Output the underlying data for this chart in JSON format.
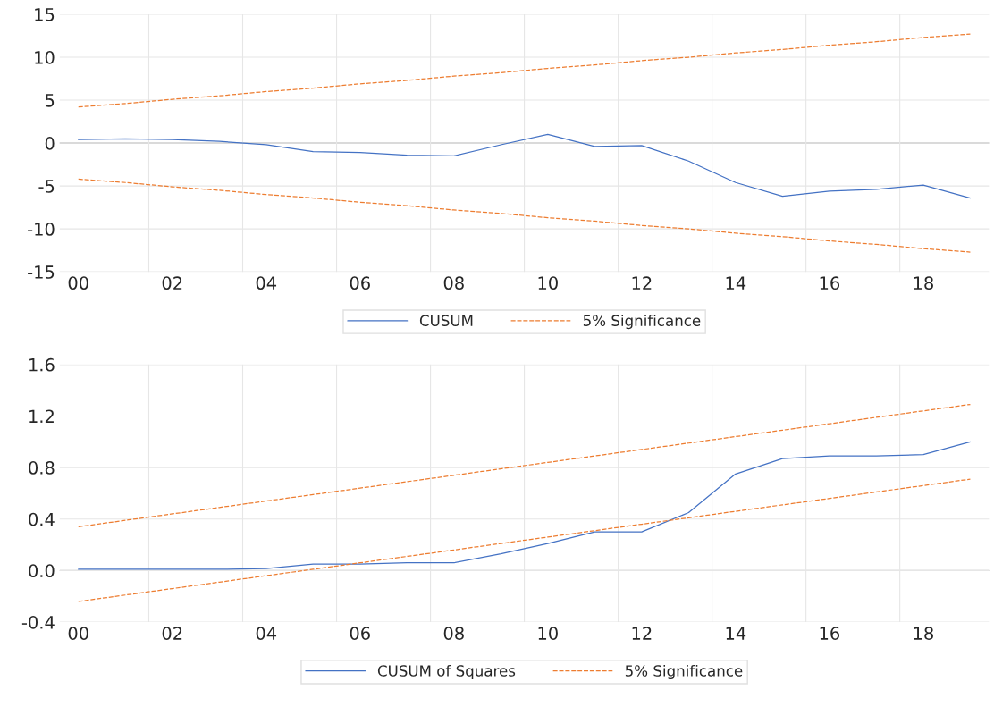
{
  "chart_data": [
    {
      "type": "line",
      "categories": [
        "00",
        null,
        "02",
        null,
        "04",
        null,
        "06",
        null,
        "08",
        null,
        "10",
        null,
        "12",
        null,
        "14",
        null,
        "16",
        null,
        "18",
        null
      ],
      "series": [
        {
          "name": "CUSUM",
          "color": "#4472c4",
          "line_style": "solid",
          "values": [
            0.4,
            0.5,
            0.4,
            0.2,
            -0.2,
            -1.0,
            -1.1,
            -1.4,
            -1.5,
            -0.2,
            1.0,
            -0.4,
            -0.3,
            -2.1,
            -4.6,
            -6.2,
            -5.6,
            -5.4,
            -4.9,
            -6.4
          ]
        },
        {
          "name": "5% Significance",
          "color": "#ed7d31",
          "line_style": "dashed",
          "values": [
            4.2,
            4.6,
            5.1,
            5.5,
            6.0,
            6.4,
            6.9,
            7.3,
            7.8,
            8.2,
            8.7,
            9.1,
            9.6,
            10.0,
            10.5,
            10.9,
            11.4,
            11.8,
            12.3,
            12.7
          ]
        },
        {
          "color": "#ed7d31",
          "line_style": "dashed",
          "values": [
            -4.2,
            -4.6,
            -5.1,
            -5.5,
            -6.0,
            -6.4,
            -6.9,
            -7.3,
            -7.8,
            -8.2,
            -8.7,
            -9.1,
            -9.6,
            -10.0,
            -10.5,
            -10.9,
            -11.4,
            -11.8,
            -12.3,
            -12.7
          ]
        }
      ],
      "ylim": [
        -15,
        15
      ],
      "yticks": [
        -15,
        -10,
        -5,
        0,
        5,
        10,
        15
      ],
      "grid": true,
      "legend": "bottom"
    },
    {
      "type": "line",
      "categories": [
        "00",
        null,
        "02",
        null,
        "04",
        null,
        "06",
        null,
        "08",
        null,
        "10",
        null,
        "12",
        null,
        "14",
        null,
        "16",
        null,
        "18",
        null
      ],
      "series": [
        {
          "name": "CUSUM of Squares",
          "color": "#4472c4",
          "line_style": "solid",
          "values": [
            0.01,
            0.01,
            0.01,
            0.01,
            0.015,
            0.05,
            0.05,
            0.06,
            0.06,
            0.13,
            0.21,
            0.3,
            0.3,
            0.45,
            0.75,
            0.87,
            0.89,
            0.89,
            0.9,
            1.0
          ]
        },
        {
          "name": "5% Significance",
          "color": "#ed7d31",
          "line_style": "dashed",
          "values": [
            0.34,
            0.39,
            0.44,
            0.49,
            0.54,
            0.59,
            0.64,
            0.69,
            0.74,
            0.79,
            0.84,
            0.89,
            0.94,
            0.99,
            1.04,
            1.09,
            1.14,
            1.19,
            1.24,
            1.29
          ]
        },
        {
          "color": "#ed7d31",
          "line_style": "dashed",
          "values": [
            -0.24,
            -0.19,
            -0.14,
            -0.09,
            -0.04,
            0.01,
            0.06,
            0.11,
            0.16,
            0.21,
            0.26,
            0.31,
            0.36,
            0.41,
            0.46,
            0.51,
            0.56,
            0.61,
            0.66,
            0.71
          ]
        }
      ],
      "ylim": [
        -0.4,
        1.6
      ],
      "yticks": [
        {
          "value": -0.4,
          "label": "-0.4"
        },
        {
          "value": 0,
          "label": "0.0"
        },
        {
          "value": 0.4,
          "label": "0.4"
        },
        {
          "value": 0.8,
          "label": "0.8"
        },
        {
          "value": 1.2,
          "label": "1.2"
        },
        {
          "value": 1.6,
          "label": "1.6"
        }
      ],
      "grid": true,
      "legend": "bottom"
    }
  ]
}
